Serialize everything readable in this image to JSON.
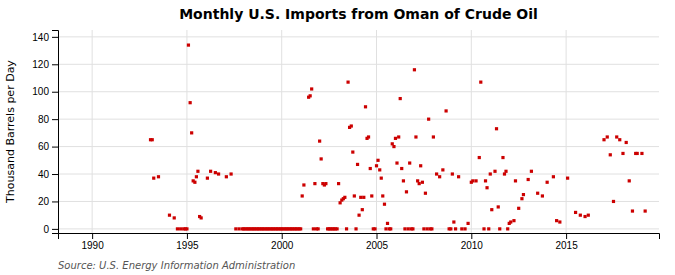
{
  "chart_data": {
    "type": "scatter",
    "title": "Monthly U.S. Imports from Oman of Crude Oil",
    "y_label": "Thousand Barrels per Day",
    "source": "Source: U.S. Energy Information Administration",
    "color": "#cc0000",
    "marker": "square",
    "grid": true,
    "xlim": [
      1988.2,
      2019.9
    ],
    "ylim": [
      -3,
      145
    ],
    "xticks": [
      1990,
      1995,
      2000,
      2005,
      2010,
      2015
    ],
    "yticks": [
      0,
      20,
      40,
      60,
      80,
      100,
      120,
      140
    ],
    "x": [
      1993.08,
      1993.17,
      1993.25,
      1993.5,
      1994.08,
      1994.33,
      1994.92,
      1994.83,
      1994.67,
      1994.5,
      1995.0,
      1995.08,
      1995.17,
      1995.25,
      1995.33,
      1995.42,
      1995.5,
      1995.58,
      1995.67,
      1995.75,
      1996.08,
      1996.25,
      1996.5,
      1996.67,
      1997.08,
      1997.33,
      1997.92,
      1997.75,
      1997.58,
      1998.0,
      1998.08,
      1998.17,
      1998.25,
      1998.33,
      1998.42,
      1998.5,
      1998.58,
      1998.67,
      1998.75,
      1998.83,
      1998.92,
      1999.0,
      1999.08,
      1999.17,
      1999.25,
      1999.33,
      1999.42,
      1999.5,
      1999.58,
      1999.67,
      1999.75,
      1999.83,
      1999.92,
      2000.0,
      2000.08,
      2000.17,
      2000.25,
      2000.33,
      2000.42,
      2000.5,
      2000.58,
      2000.67,
      2000.75,
      2000.83,
      2000.92,
      2001.0,
      2001.08,
      2001.17,
      2001.42,
      2001.5,
      2001.58,
      2001.67,
      2001.75,
      2001.83,
      2001.92,
      2002.0,
      2002.08,
      2002.17,
      2002.25,
      2002.33,
      2002.42,
      2002.5,
      2002.58,
      2002.67,
      2002.75,
      2002.83,
      2002.92,
      2003.0,
      2003.08,
      2003.17,
      2003.25,
      2003.33,
      2003.42,
      2003.5,
      2003.58,
      2003.67,
      2003.75,
      2003.83,
      2003.92,
      2004.0,
      2004.08,
      2004.17,
      2004.25,
      2004.33,
      2004.42,
      2004.5,
      2004.58,
      2004.67,
      2004.75,
      2004.83,
      2004.92,
      2005.0,
      2005.08,
      2005.17,
      2005.25,
      2005.33,
      2005.42,
      2005.5,
      2005.58,
      2005.67,
      2005.75,
      2005.83,
      2005.92,
      2006.0,
      2006.08,
      2006.17,
      2006.25,
      2006.33,
      2006.42,
      2006.5,
      2006.58,
      2006.67,
      2006.75,
      2006.83,
      2006.92,
      2007.0,
      2007.08,
      2007.17,
      2007.25,
      2007.33,
      2007.42,
      2007.5,
      2007.58,
      2007.67,
      2007.75,
      2007.83,
      2007.92,
      2008.0,
      2008.17,
      2008.33,
      2008.5,
      2008.67,
      2008.83,
      2008.92,
      2009.0,
      2009.08,
      2009.17,
      2009.33,
      2009.5,
      2009.67,
      2009.83,
      2010.0,
      2010.08,
      2010.25,
      2010.42,
      2010.5,
      2010.67,
      2010.75,
      2010.83,
      2010.92,
      2011.0,
      2011.08,
      2011.25,
      2011.33,
      2011.42,
      2011.5,
      2011.67,
      2011.75,
      2011.83,
      2011.92,
      2012.0,
      2012.08,
      2012.25,
      2012.33,
      2012.5,
      2012.67,
      2012.75,
      2013.0,
      2013.17,
      2013.5,
      2013.75,
      2014.0,
      2014.33,
      2014.5,
      2014.67,
      2015.08,
      2015.5,
      2015.75,
      2016.0,
      2016.17,
      2017.0,
      2017.17,
      2017.33,
      2017.5,
      2017.67,
      2017.83,
      2018.0,
      2018.17,
      2018.33,
      2018.5,
      2018.67,
      2018.75,
      2019.0,
      2019.17
    ],
    "values": [
      65,
      65,
      37,
      38,
      10,
      8,
      0,
      0,
      0,
      0,
      0,
      134,
      92,
      70,
      35,
      34,
      38,
      42,
      9,
      8,
      37,
      42,
      41,
      40,
      38,
      40,
      0,
      0,
      0,
      0,
      0,
      0,
      0,
      0,
      0,
      0,
      0,
      0,
      0,
      0,
      0,
      0,
      0,
      0,
      0,
      0,
      0,
      0,
      0,
      0,
      0,
      0,
      0,
      0,
      0,
      0,
      0,
      0,
      0,
      0,
      0,
      0,
      0,
      0,
      0,
      0,
      24,
      32,
      96,
      97,
      102,
      0,
      33,
      0,
      0,
      64,
      51,
      33,
      32,
      33,
      0,
      0,
      0,
      0,
      0,
      0,
      0,
      33,
      19,
      21,
      22,
      23,
      0,
      107,
      74,
      75,
      56,
      24,
      0,
      47,
      10,
      23,
      14,
      23,
      89,
      66,
      67,
      44,
      24,
      0,
      0,
      46,
      50,
      43,
      37,
      24,
      18,
      0,
      4,
      0,
      0,
      62,
      60,
      66,
      48,
      67,
      95,
      44,
      35,
      0,
      27,
      0,
      48,
      0,
      0,
      116,
      67,
      35,
      33,
      46,
      34,
      0,
      26,
      0,
      80,
      0,
      0,
      67,
      40,
      38,
      43,
      86,
      0,
      0,
      40,
      5,
      0,
      38,
      0,
      0,
      4,
      34,
      35,
      35,
      52,
      107,
      0,
      35,
      30,
      0,
      40,
      14,
      42,
      73,
      16,
      0,
      52,
      40,
      42,
      0,
      4,
      5,
      6,
      35,
      15,
      22,
      25,
      36,
      42,
      26,
      24,
      34,
      38,
      6,
      5,
      37,
      12,
      10,
      9,
      10,
      65,
      67,
      54,
      20,
      67,
      65,
      55,
      63,
      35,
      13,
      55,
      55,
      55,
      13
    ]
  }
}
